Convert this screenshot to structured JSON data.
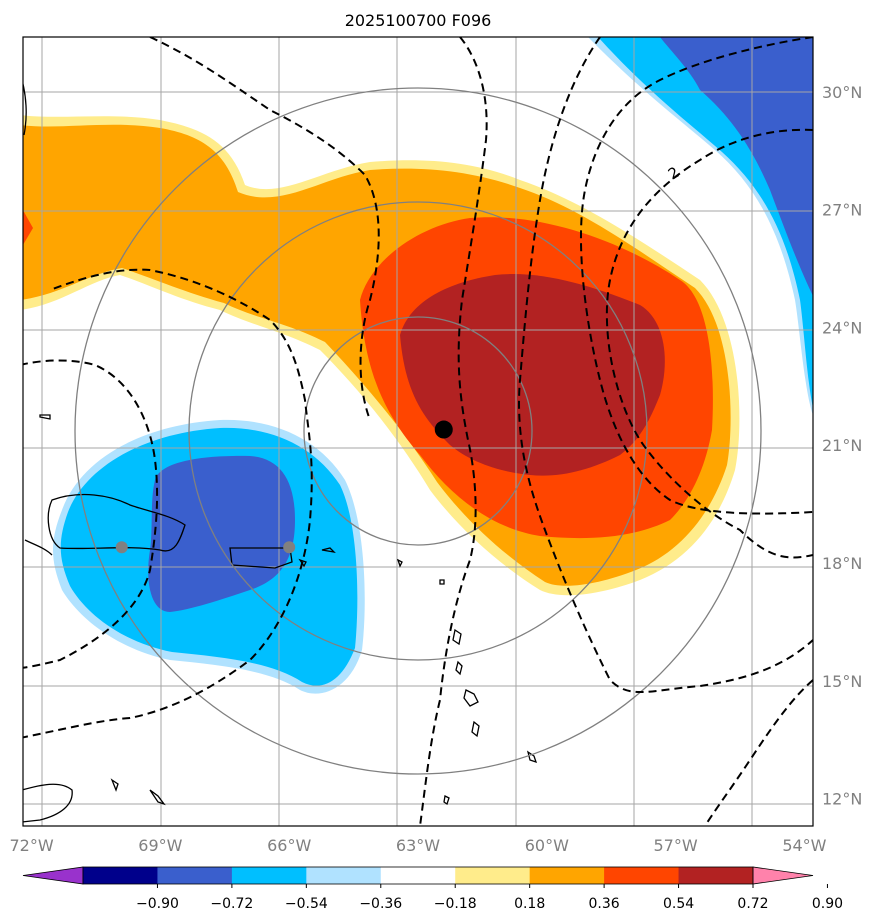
{
  "chart_data": {
    "type": "map-contour",
    "title": "2025100700 F096",
    "lon_range": [
      -72.2,
      -53.8
    ],
    "lat_range": [
      11.3,
      31.4
    ],
    "lon_ticks": [
      -72,
      -69,
      -66,
      -63,
      -60,
      -57,
      -54
    ],
    "lon_tick_labels": [
      "72°W",
      "69°W",
      "66°W",
      "63°W",
      "60°W",
      "57°W",
      "54°W"
    ],
    "lat_ticks": [
      12,
      15,
      18,
      21,
      24,
      27,
      30
    ],
    "lat_tick_labels": [
      "12°N",
      "15°N",
      "18°N",
      "21°N",
      "24°N",
      "27°N",
      "30°N"
    ],
    "storm_center": {
      "lon": -62.4,
      "lat": 21.4
    },
    "range_rings_deg": [
      2.8,
      5.6,
      8.5
    ],
    "gray_markers": [
      {
        "lon": -69.9,
        "lat": 18.4
      },
      {
        "lon": -66.0,
        "lat": 18.4
      }
    ],
    "contour_inline_label": "2",
    "colorbar": {
      "colors": [
        "#9932cc",
        "#00008b",
        "#3a5fcd",
        "#00bfff",
        "#b0e2ff",
        "#ffffff",
        "#ffec8b",
        "#ffa500",
        "#ff4500",
        "#b22222",
        "#ff82ab"
      ],
      "boundaries": [
        -0.9,
        -0.72,
        -0.54,
        -0.36,
        -0.18,
        0.18,
        0.36,
        0.54,
        0.72,
        0.9
      ],
      "labels": [
        "−0.90",
        "−0.72",
        "−0.54",
        "−0.36",
        "−0.18",
        "0.18",
        "0.36",
        "0.54",
        "0.72",
        "0.90"
      ]
    }
  }
}
